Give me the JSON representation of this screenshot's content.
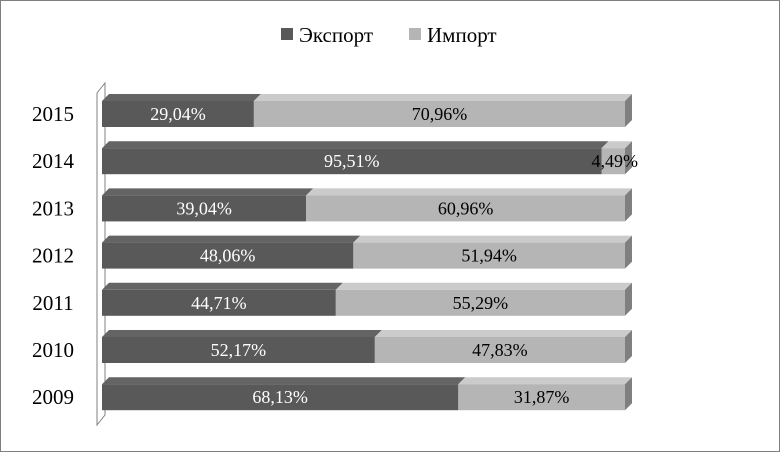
{
  "chart_data": {
    "type": "bar",
    "orientation": "horizontal",
    "stacked": "percent",
    "categories": [
      "2015",
      "2014",
      "2013",
      "2012",
      "2011",
      "2010",
      "2009"
    ],
    "series": [
      {
        "name": "Экспорт",
        "color": "#595959",
        "values": [
          29.04,
          95.51,
          39.04,
          48.06,
          44.71,
          52.17,
          68.13
        ],
        "labels": [
          "29,04%",
          "95,51%",
          "39,04%",
          "48,06%",
          "44,71%",
          "52,17%",
          "68,13%"
        ]
      },
      {
        "name": "Импорт",
        "color": "#b5b5b5",
        "values": [
          70.96,
          4.49,
          60.96,
          51.94,
          55.29,
          47.83,
          31.87
        ],
        "labels": [
          "70,96%",
          "4,49%",
          "60,96%",
          "51,94%",
          "55,29%",
          "47,83%",
          "31,87%"
        ]
      }
    ],
    "xlim": [
      0,
      100
    ],
    "legend_position": "top",
    "grid": false
  }
}
